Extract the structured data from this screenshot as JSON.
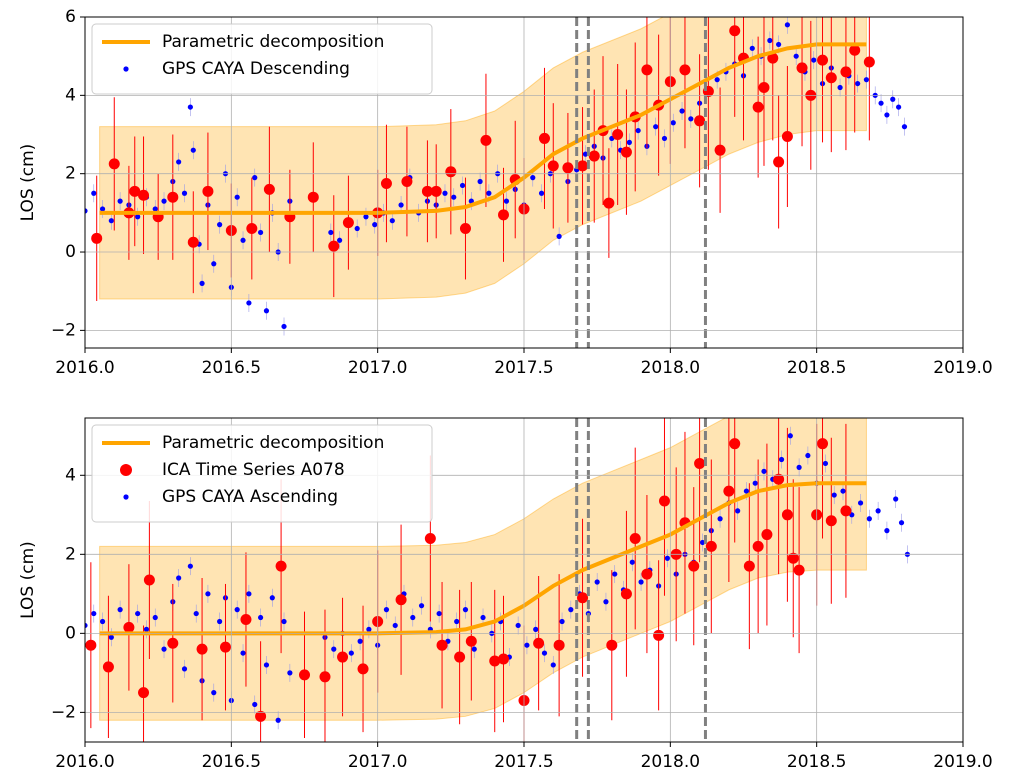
{
  "chart_data": [
    {
      "type": "scatter",
      "ylabel": "LOS (cm)",
      "xlim": [
        2016,
        2019
      ],
      "ylim": [
        -2.45,
        6
      ],
      "xticks": [
        {
          "value": 2016,
          "label": "2016.0"
        },
        {
          "value": 2016.5,
          "label": "2016.5"
        },
        {
          "value": 2017,
          "label": "2017.0"
        },
        {
          "value": 2017.5,
          "label": "2017.5"
        },
        {
          "value": 2018,
          "label": "2018.0"
        },
        {
          "value": 2018.5,
          "label": "2018.5"
        },
        {
          "value": 2019,
          "label": "2019.0"
        }
      ],
      "yticks": [
        {
          "value": -2,
          "label": "−2"
        },
        0,
        2,
        4,
        6
      ],
      "grid": true,
      "legend": "upper left",
      "vlines": [
        2017.68,
        2017.72,
        2018.12
      ],
      "vline_color": "#808080",
      "series": [
        {
          "name": "Parametric decomposition",
          "style": "line",
          "color": "#ffa500",
          "band_color": "#ffd280",
          "x": [
            2016.05,
            2016.5,
            2017.0,
            2017.2,
            2017.3,
            2017.4,
            2017.5,
            2017.6,
            2017.7,
            2017.8,
            2017.9,
            2018.0,
            2018.1,
            2018.2,
            2018.3,
            2018.4,
            2018.5,
            2018.67
          ],
          "values": [
            1,
            1,
            1,
            1.05,
            1.15,
            1.4,
            1.9,
            2.5,
            2.9,
            3.2,
            3.5,
            3.9,
            4.3,
            4.7,
            5.0,
            5.2,
            5.3,
            5.3
          ],
          "lower": [
            -1.2,
            -1.2,
            -1.2,
            -1.15,
            -1.05,
            -0.8,
            -0.3,
            0.3,
            0.7,
            1.0,
            1.3,
            1.7,
            2.1,
            2.5,
            2.8,
            3.0,
            3.1,
            3.1
          ],
          "upper": [
            3.2,
            3.2,
            3.2,
            3.25,
            3.35,
            3.6,
            4.1,
            4.7,
            5.1,
            5.4,
            5.7,
            6.1,
            6.5,
            6.9,
            7.2,
            7.4,
            7.5,
            7.5
          ]
        },
        {
          "style": "errorbar",
          "color": "#ff0000",
          "x": [
            2016.04,
            2016.1,
            2016.15,
            2016.17,
            2016.2,
            2016.25,
            2016.3,
            2016.37,
            2016.42,
            2016.5,
            2016.57,
            2016.63,
            2016.7,
            2016.78,
            2016.85,
            2016.9,
            2017.0,
            2017.03,
            2017.1,
            2017.17,
            2017.2,
            2017.25,
            2017.3,
            2017.37,
            2017.43,
            2017.47,
            2017.5,
            2017.57,
            2017.6,
            2017.65,
            2017.7,
            2017.74,
            2017.77,
            2017.79,
            2017.82,
            2017.85,
            2017.88,
            2017.92,
            2017.96,
            2018.0,
            2018.05,
            2018.1,
            2018.13,
            2018.17,
            2018.22,
            2018.25,
            2018.3,
            2018.32,
            2018.35,
            2018.37,
            2018.4,
            2018.45,
            2018.48,
            2018.52,
            2018.55,
            2018.6,
            2018.63,
            2018.68
          ],
          "values": [
            0.35,
            2.25,
            1.0,
            1.55,
            1.45,
            0.9,
            1.4,
            0.25,
            1.55,
            0.55,
            0.6,
            1.6,
            0.9,
            1.4,
            0.15,
            0.75,
            1.0,
            1.75,
            1.8,
            1.55,
            1.55,
            2.05,
            0.6,
            2.85,
            0.95,
            1.85,
            1.1,
            2.9,
            2.2,
            2.15,
            2.2,
            2.45,
            3.1,
            1.25,
            3.0,
            2.55,
            3.45,
            4.65,
            3.75,
            4.35,
            4.65,
            3.35,
            4.1,
            2.6,
            5.65,
            4.95,
            3.7,
            4.2,
            4.95,
            2.3,
            2.95,
            4.7,
            4.0,
            4.9,
            4.45,
            4.6,
            5.15,
            4.85
          ],
          "errors": [
            1.6,
            1.7,
            1.2,
            1.4,
            1.5,
            1.1,
            1.6,
            1.3,
            1.5,
            1.2,
            1.3,
            1.6,
            1.2,
            1.4,
            1.3,
            1.2,
            1.1,
            1.5,
            1.4,
            1.3,
            1.2,
            1.6,
            1.3,
            1.7,
            1.2,
            1.5,
            1.3,
            1.8,
            1.6,
            1.4,
            1.5,
            1.7,
            1.9,
            1.4,
            1.8,
            1.6,
            1.9,
            2.0,
            1.8,
            2.1,
            2.0,
            1.7,
            2.0,
            1.6,
            2.2,
            2.1,
            1.8,
            2.0,
            2.1,
            1.7,
            1.8,
            2.0,
            1.9,
            2.1,
            1.9,
            2.0,
            2.1,
            2.0
          ]
        },
        {
          "name": "GPS CAYA Descending",
          "style": "points",
          "color": "#0000ff",
          "x": [
            2016.0,
            2016.03,
            2016.06,
            2016.09,
            2016.12,
            2016.15,
            2016.18,
            2016.21,
            2016.24,
            2016.27,
            2016.3,
            2016.32,
            2016.34,
            2016.36,
            2016.37,
            2016.39,
            2016.4,
            2016.42,
            2016.44,
            2016.46,
            2016.48,
            2016.5,
            2016.52,
            2016.54,
            2016.56,
            2016.58,
            2016.6,
            2016.62,
            2016.64,
            2016.66,
            2016.68,
            2016.7,
            2016.84,
            2016.87,
            2016.9,
            2016.93,
            2016.96,
            2016.99,
            2017.02,
            2017.05,
            2017.08,
            2017.11,
            2017.14,
            2017.17,
            2017.2,
            2017.23,
            2017.26,
            2017.29,
            2017.32,
            2017.35,
            2017.38,
            2017.41,
            2017.44,
            2017.47,
            2017.5,
            2017.53,
            2017.56,
            2017.59,
            2017.62,
            2017.65,
            2017.68,
            2017.71,
            2017.74,
            2017.77,
            2017.8,
            2017.83,
            2017.86,
            2017.89,
            2017.92,
            2017.95,
            2017.98,
            2018.01,
            2018.04,
            2018.07,
            2018.1,
            2018.13,
            2018.16,
            2018.19,
            2018.22,
            2018.25,
            2018.28,
            2018.31,
            2018.34,
            2018.37,
            2018.4,
            2018.43,
            2018.46,
            2018.49,
            2018.52,
            2018.55,
            2018.58,
            2018.61,
            2018.64,
            2018.67,
            2018.7,
            2018.72,
            2018.74,
            2018.76,
            2018.78,
            2018.8
          ],
          "values": [
            1.05,
            1.5,
            1.1,
            0.8,
            1.3,
            1.2,
            0.9,
            1.4,
            1.1,
            1.3,
            1.8,
            2.3,
            1.5,
            3.7,
            2.6,
            0.2,
            -0.8,
            1.2,
            -0.3,
            0.7,
            2.0,
            -0.9,
            1.4,
            0.3,
            -1.3,
            1.9,
            0.5,
            -1.5,
            1.0,
            0.0,
            -1.9,
            1.3,
            0.5,
            0.3,
            0.8,
            0.6,
            0.9,
            0.7,
            1.0,
            0.8,
            1.2,
            1.9,
            1.0,
            1.3,
            1.2,
            1.5,
            1.4,
            1.7,
            1.3,
            1.8,
            1.5,
            2.0,
            1.3,
            1.6,
            1.2,
            1.9,
            1.5,
            2.0,
            0.4,
            1.8,
            2.1,
            2.5,
            2.7,
            2.4,
            2.9,
            2.6,
            2.8,
            3.1,
            2.7,
            3.2,
            2.9,
            3.3,
            3.6,
            3.4,
            3.8,
            4.1,
            4.4,
            4.6,
            4.8,
            4.5,
            5.2,
            5.0,
            5.4,
            5.3,
            5.8,
            5.0,
            4.6,
            4.9,
            4.3,
            4.7,
            4.2,
            4.5,
            4.3,
            4.4,
            4.0,
            3.8,
            3.5,
            3.9,
            3.7,
            3.2
          ]
        }
      ]
    },
    {
      "type": "scatter",
      "ylabel": "LOS (cm)",
      "xlim": [
        2016,
        2019
      ],
      "ylim": [
        -2.75,
        5.45
      ],
      "xticks": [
        {
          "value": 2016,
          "label": "2016.0"
        },
        {
          "value": 2016.5,
          "label": "2016.5"
        },
        {
          "value": 2017,
          "label": "2017.0"
        },
        {
          "value": 2017.5,
          "label": "2017.5"
        },
        {
          "value": 2018,
          "label": "2018.0"
        },
        {
          "value": 2018.5,
          "label": "2018.5"
        },
        {
          "value": 2019,
          "label": "2019.0"
        }
      ],
      "yticks": [
        {
          "value": -2,
          "label": "−2"
        },
        0,
        2,
        4
      ],
      "grid": true,
      "legend": "upper left",
      "vlines": [
        2017.68,
        2017.72,
        2018.12
      ],
      "vline_color": "#808080",
      "series": [
        {
          "name": "Parametric decomposition",
          "style": "line",
          "color": "#ffa500",
          "band_color": "#ffd280",
          "x": [
            2016.05,
            2016.5,
            2017.0,
            2017.2,
            2017.3,
            2017.4,
            2017.5,
            2017.6,
            2017.7,
            2017.8,
            2017.9,
            2018.0,
            2018.1,
            2018.2,
            2018.3,
            2018.4,
            2018.5,
            2018.67
          ],
          "values": [
            0,
            0,
            0,
            0.03,
            0.1,
            0.3,
            0.7,
            1.2,
            1.6,
            1.9,
            2.2,
            2.5,
            2.9,
            3.3,
            3.6,
            3.75,
            3.8,
            3.8
          ],
          "lower": [
            -2.2,
            -2.2,
            -2.2,
            -2.17,
            -2.1,
            -1.9,
            -1.5,
            -1.0,
            -0.6,
            -0.3,
            0.0,
            0.3,
            0.7,
            1.1,
            1.4,
            1.55,
            1.6,
            1.6
          ],
          "upper": [
            2.2,
            2.2,
            2.2,
            2.23,
            2.3,
            2.5,
            2.9,
            3.4,
            3.8,
            4.1,
            4.4,
            4.7,
            5.1,
            5.5,
            5.8,
            5.95,
            6.0,
            6.0
          ]
        },
        {
          "name": "ICA Time Series A078",
          "style": "errorbar",
          "color": "#ff0000",
          "x": [
            2016.02,
            2016.08,
            2016.15,
            2016.2,
            2016.22,
            2016.3,
            2016.4,
            2016.48,
            2016.55,
            2016.6,
            2016.67,
            2016.75,
            2016.82,
            2016.88,
            2016.95,
            2017.0,
            2017.08,
            2017.18,
            2017.22,
            2017.28,
            2017.32,
            2017.4,
            2017.43,
            2017.5,
            2017.55,
            2017.62,
            2017.7,
            2017.8,
            2017.85,
            2017.88,
            2017.92,
            2017.96,
            2017.98,
            2018.02,
            2018.05,
            2018.08,
            2018.1,
            2018.14,
            2018.2,
            2018.22,
            2018.27,
            2018.3,
            2018.33,
            2018.37,
            2018.4,
            2018.42,
            2018.44,
            2018.5,
            2018.52,
            2018.55,
            2018.6
          ],
          "values": [
            -0.3,
            -0.85,
            0.15,
            -1.5,
            1.35,
            -0.25,
            -0.4,
            -0.35,
            0.35,
            -2.1,
            1.7,
            -1.05,
            -1.1,
            -0.6,
            -0.9,
            0.3,
            0.85,
            2.4,
            -0.3,
            -0.6,
            -0.2,
            -0.7,
            -0.65,
            -1.7,
            -0.25,
            -0.3,
            0.9,
            -0.3,
            1.0,
            2.4,
            1.5,
            -0.05,
            3.35,
            2.0,
            2.8,
            1.7,
            4.3,
            2.2,
            3.6,
            4.8,
            1.7,
            2.2,
            2.5,
            3.9,
            3.0,
            1.9,
            1.6,
            3.0,
            4.8,
            2.85,
            3.1
          ],
          "errors": [
            2.1,
            1.8,
            1.6,
            1.7,
            2.0,
            1.5,
            1.8,
            1.6,
            1.7,
            1.9,
            2.2,
            1.6,
            1.7,
            1.5,
            1.6,
            1.8,
            1.9,
            2.1,
            1.6,
            1.7,
            1.5,
            1.8,
            1.6,
            1.9,
            1.7,
            1.8,
            2.0,
            1.9,
            2.1,
            2.3,
            2.0,
            1.9,
            2.4,
            2.2,
            2.3,
            2.0,
            2.5,
            2.2,
            2.3,
            2.5,
            2.1,
            2.2,
            2.3,
            2.4,
            2.2,
            2.0,
            2.1,
            2.3,
            2.4,
            2.1,
            2.2
          ]
        },
        {
          "name": "GPS CAYA Ascending",
          "style": "points",
          "color": "#0000ff",
          "x": [
            2016.0,
            2016.03,
            2016.06,
            2016.09,
            2016.12,
            2016.15,
            2016.18,
            2016.21,
            2016.24,
            2016.27,
            2016.3,
            2016.32,
            2016.34,
            2016.36,
            2016.38,
            2016.4,
            2016.42,
            2016.44,
            2016.46,
            2016.48,
            2016.5,
            2016.52,
            2016.54,
            2016.56,
            2016.58,
            2016.6,
            2016.62,
            2016.64,
            2016.66,
            2016.68,
            2016.7,
            2016.82,
            2016.85,
            2016.88,
            2016.91,
            2016.94,
            2016.97,
            2017.0,
            2017.03,
            2017.06,
            2017.09,
            2017.12,
            2017.15,
            2017.18,
            2017.21,
            2017.24,
            2017.27,
            2017.3,
            2017.33,
            2017.36,
            2017.39,
            2017.42,
            2017.45,
            2017.48,
            2017.51,
            2017.54,
            2017.57,
            2017.6,
            2017.63,
            2017.66,
            2017.69,
            2017.72,
            2017.75,
            2017.78,
            2017.81,
            2017.84,
            2017.87,
            2017.9,
            2017.93,
            2017.96,
            2017.99,
            2018.02,
            2018.05,
            2018.08,
            2018.11,
            2018.14,
            2018.17,
            2018.2,
            2018.23,
            2018.26,
            2018.29,
            2018.32,
            2018.35,
            2018.38,
            2018.41,
            2018.44,
            2018.47,
            2018.5,
            2018.53,
            2018.56,
            2018.59,
            2018.62,
            2018.65,
            2018.68,
            2018.71,
            2018.74,
            2018.77,
            2018.79,
            2018.81
          ],
          "values": [
            0.2,
            0.5,
            0.3,
            -0.1,
            0.6,
            0.2,
            0.5,
            0.1,
            0.4,
            -0.4,
            0.8,
            1.4,
            -0.9,
            1.7,
            0.5,
            -1.2,
            1.0,
            -1.5,
            0.3,
            0.9,
            -1.7,
            0.6,
            -0.5,
            1.0,
            -1.8,
            0.4,
            -0.8,
            0.9,
            -2.2,
            0.3,
            -1.0,
            -0.1,
            -0.4,
            0.0,
            -0.5,
            -0.2,
            0.1,
            -0.3,
            0.6,
            0.2,
            1.0,
            0.4,
            0.7,
            0.1,
            0.5,
            -0.2,
            0.3,
            0.6,
            -0.4,
            0.4,
            0.0,
            0.3,
            -0.6,
            0.2,
            -0.3,
            0.1,
            -0.5,
            -0.8,
            0.3,
            0.6,
            1.0,
            0.5,
            1.3,
            0.8,
            1.5,
            1.1,
            1.8,
            1.3,
            1.6,
            1.2,
            1.9,
            1.5,
            2.0,
            1.8,
            2.3,
            2.6,
            2.9,
            3.3,
            3.1,
            3.6,
            3.8,
            4.1,
            3.9,
            4.4,
            5.0,
            4.2,
            4.5,
            3.8,
            4.3,
            3.5,
            3.6,
            3.0,
            3.3,
            2.9,
            3.1,
            2.6,
            3.4,
            2.8,
            2.0
          ]
        }
      ]
    }
  ]
}
